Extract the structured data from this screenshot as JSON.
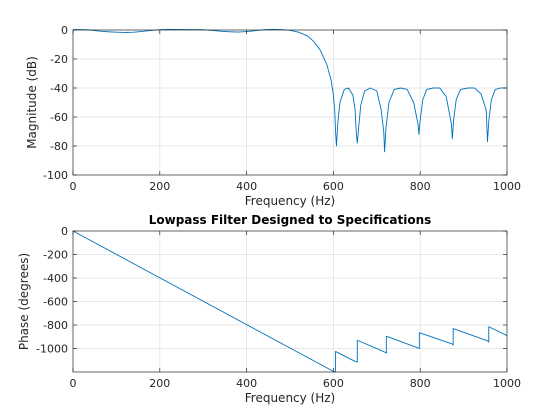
{
  "chart_data": [
    {
      "type": "line",
      "title": "",
      "xlabel": "Frequency (Hz)",
      "ylabel": "Magnitude (dB)",
      "xlim": [
        0,
        1000
      ],
      "ylim": [
        -100,
        0
      ],
      "xticks": [
        0,
        200,
        400,
        600,
        800,
        1000
      ],
      "yticks": [
        0,
        -20,
        -40,
        -60,
        -80,
        -100
      ],
      "xtick_labels": [
        "0",
        "200",
        "400",
        "600",
        "800",
        "1000"
      ],
      "ytick_labels": [
        "0",
        "-20",
        "-40",
        "-60",
        "-80",
        "-100"
      ],
      "grid": true,
      "color": "#0072bd",
      "series": [
        {
          "x": [
            0,
            20,
            40,
            60,
            80,
            100,
            120,
            140,
            160,
            180,
            200,
            220,
            240,
            260,
            280,
            300,
            320,
            340,
            360,
            380,
            400,
            420,
            440,
            460,
            480,
            500,
            520,
            540,
            555,
            570,
            585,
            595,
            600,
            603,
            605,
            607,
            610,
            615,
            625,
            635,
            645,
            650,
            653,
            655,
            658,
            663,
            672,
            685,
            700,
            710,
            716,
            718,
            721,
            728,
            740,
            755,
            770,
            785,
            795,
            797,
            800,
            806,
            815,
            830,
            845,
            860,
            872,
            874,
            877,
            883,
            893,
            910,
            925,
            940,
            952,
            955,
            958,
            964,
            973,
            985,
            1000
          ],
          "y": [
            0.3,
            0.3,
            0,
            -0.7,
            -1.2,
            -1.5,
            -1.7,
            -1.5,
            -1,
            -0.3,
            0.2,
            0.5,
            0.4,
            0.3,
            0.3,
            0.2,
            -0.3,
            -0.8,
            -1.2,
            -1.4,
            -1.1,
            -0.5,
            0.2,
            0.5,
            0.3,
            -0.2,
            -1.5,
            -4,
            -8,
            -14,
            -24,
            -35,
            -45,
            -55,
            -70,
            -80,
            -65,
            -50,
            -41,
            -40,
            -45,
            -55,
            -72,
            -78,
            -68,
            -52,
            -42,
            -40,
            -42,
            -55,
            -70,
            -84,
            -68,
            -50,
            -41,
            -40,
            -41,
            -50,
            -65,
            -72,
            -62,
            -48,
            -41,
            -40,
            -40,
            -46,
            -65,
            -75,
            -62,
            -48,
            -41,
            -40,
            -40,
            -44,
            -55,
            -77,
            -63,
            -48,
            -41,
            -40,
            -40
          ]
        }
      ]
    },
    {
      "type": "line",
      "title": "Lowpass Filter Designed to Specifications",
      "xlabel": "Frequency (Hz)",
      "ylabel": "Phase (degrees)",
      "xlim": [
        0,
        1000
      ],
      "ylim": [
        -1200,
        0
      ],
      "xticks": [
        0,
        200,
        400,
        600,
        800,
        1000
      ],
      "yticks": [
        0,
        -200,
        -400,
        -600,
        -800,
        -1000
      ],
      "xtick_labels": [
        "0",
        "200",
        "400",
        "600",
        "800",
        "1000"
      ],
      "ytick_labels": [
        "0",
        "-200",
        "-400",
        "-600",
        "-800",
        "-1000"
      ],
      "grid": true,
      "color": "#0072bd",
      "series": [
        {
          "x": [
            0,
            600,
            605,
            605,
            650,
            655,
            655,
            718,
            722,
            722,
            795,
            798,
            798,
            873,
            876,
            876,
            955,
            958,
            958,
            1000
          ],
          "y": [
            0,
            -1195,
            -1200,
            -1025,
            -1110,
            -1115,
            -930,
            -1030,
            -1040,
            -895,
            -995,
            -1000,
            -865,
            -960,
            -970,
            -830,
            -935,
            -945,
            -815,
            -890
          ]
        }
      ]
    }
  ]
}
